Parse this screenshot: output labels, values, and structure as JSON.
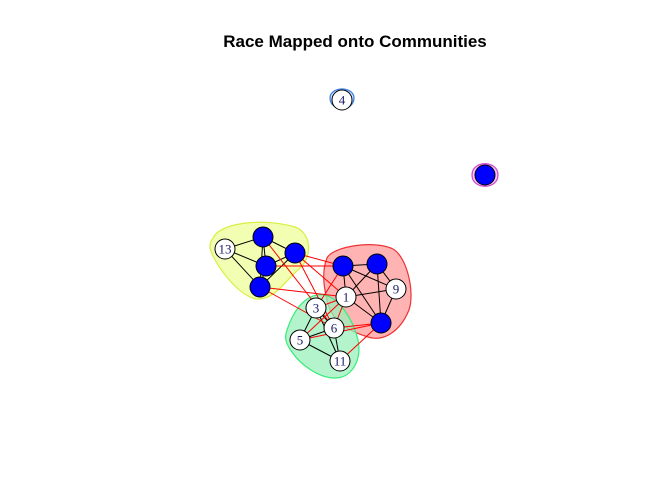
{
  "title": "Race Mapped onto Communities",
  "colors": {
    "node_blue": "#0000ff",
    "node_white": "#ffffff",
    "edge_within": "#000000",
    "edge_between": "#ff0000",
    "label": "#1a1a66"
  },
  "communities": [
    {
      "id": "blue",
      "fill": "#b3d4ff",
      "stroke": "#3a7ee0",
      "nodes": [
        "n4"
      ]
    },
    {
      "id": "magenta",
      "fill": "#f0b3f0",
      "stroke": "#d040d0",
      "nodes": [
        "n17"
      ]
    },
    {
      "id": "yellow",
      "fill": "#eeff99",
      "stroke": "#d9ee40",
      "nodes": [
        "n13",
        "n14",
        "n15",
        "n16",
        "n18"
      ]
    },
    {
      "id": "red",
      "fill": "#ff9999",
      "stroke": "#ee3333",
      "nodes": [
        "n1",
        "n9",
        "n19",
        "n20",
        "n21"
      ]
    },
    {
      "id": "green",
      "fill": "#99f0bb",
      "stroke": "#33ee77",
      "nodes": [
        "n3",
        "n5",
        "n6",
        "n11"
      ]
    }
  ],
  "nodes": [
    {
      "id": "n4",
      "label": "4",
      "color": "white"
    },
    {
      "id": "n17",
      "label": "",
      "color": "blue"
    },
    {
      "id": "n13",
      "label": "13",
      "color": "white"
    },
    {
      "id": "n14",
      "label": "",
      "color": "blue"
    },
    {
      "id": "n15",
      "label": "",
      "color": "blue"
    },
    {
      "id": "n16",
      "label": "",
      "color": "blue"
    },
    {
      "id": "n18",
      "label": "",
      "color": "blue"
    },
    {
      "id": "n19",
      "label": "",
      "color": "blue"
    },
    {
      "id": "n20",
      "label": "",
      "color": "blue"
    },
    {
      "id": "n1",
      "label": "1",
      "color": "white"
    },
    {
      "id": "n9",
      "label": "9",
      "color": "white"
    },
    {
      "id": "n21",
      "label": "",
      "color": "blue"
    },
    {
      "id": "n3",
      "label": "3",
      "color": "white"
    },
    {
      "id": "n6",
      "label": "6",
      "color": "white"
    },
    {
      "id": "n5",
      "label": "5",
      "color": "white"
    },
    {
      "id": "n11",
      "label": "11",
      "color": "white"
    }
  ],
  "edges_within": [
    [
      "n13",
      "n14"
    ],
    [
      "n13",
      "n15"
    ],
    [
      "n13",
      "n18"
    ],
    [
      "n14",
      "n15"
    ],
    [
      "n14",
      "n16"
    ],
    [
      "n15",
      "n16"
    ],
    [
      "n15",
      "n18"
    ],
    [
      "n14",
      "n18"
    ],
    [
      "n16",
      "n18"
    ],
    [
      "n19",
      "n20"
    ],
    [
      "n19",
      "n1"
    ],
    [
      "n19",
      "n9"
    ],
    [
      "n19",
      "n21"
    ],
    [
      "n20",
      "n1"
    ],
    [
      "n20",
      "n9"
    ],
    [
      "n20",
      "n21"
    ],
    [
      "n1",
      "n9"
    ],
    [
      "n1",
      "n21"
    ],
    [
      "n9",
      "n21"
    ],
    [
      "n3",
      "n6"
    ],
    [
      "n3",
      "n5"
    ],
    [
      "n3",
      "n11"
    ],
    [
      "n6",
      "n5"
    ],
    [
      "n6",
      "n11"
    ],
    [
      "n5",
      "n11"
    ]
  ],
  "edges_between": [
    [
      "n16",
      "n19"
    ],
    [
      "n16",
      "n1"
    ],
    [
      "n15",
      "n19"
    ],
    [
      "n18",
      "n6"
    ],
    [
      "n18",
      "n1"
    ],
    [
      "n16",
      "n6"
    ],
    [
      "n3",
      "n1"
    ],
    [
      "n6",
      "n1"
    ],
    [
      "n6",
      "n21"
    ],
    [
      "n5",
      "n1"
    ],
    [
      "n11",
      "n21"
    ],
    [
      "n3",
      "n19"
    ],
    [
      "n14",
      "n6"
    ],
    [
      "n5",
      "n21"
    ]
  ]
}
